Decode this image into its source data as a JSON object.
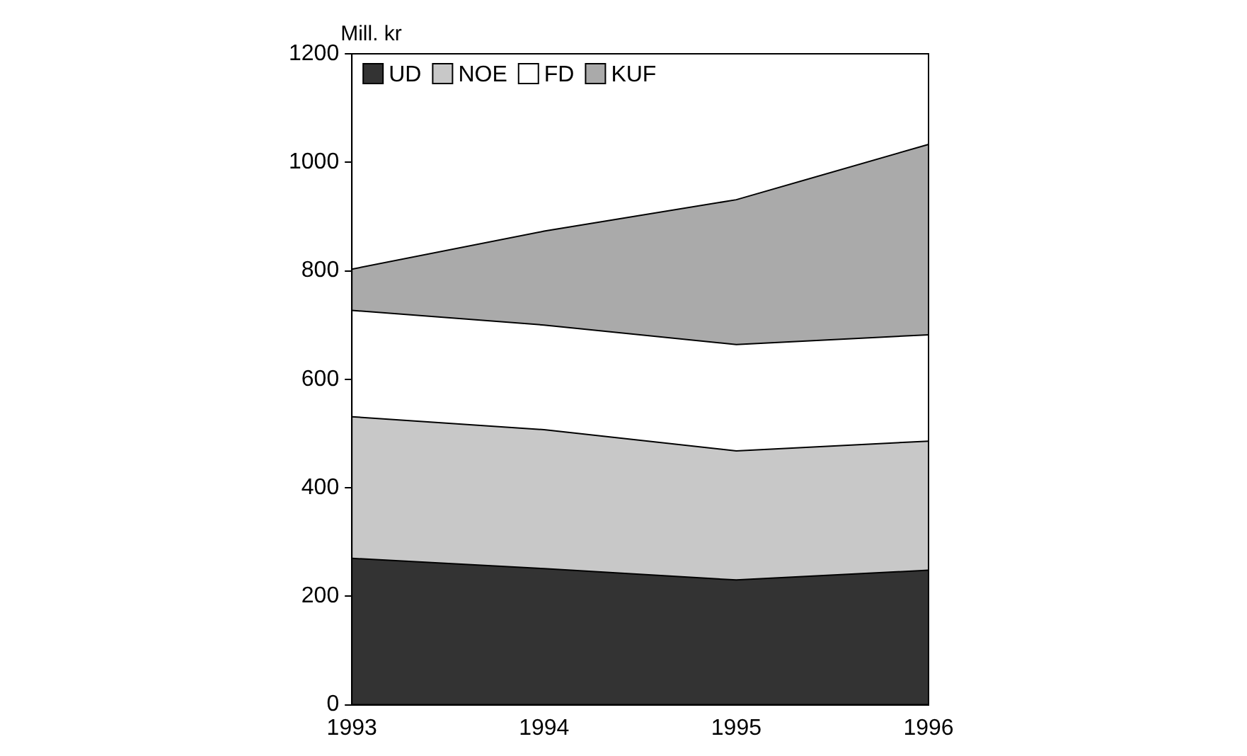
{
  "chart_data": {
    "type": "area",
    "stacked": true,
    "ylabel": "Mill. kr",
    "categories": [
      "1993",
      "1994",
      "1995",
      "1996"
    ],
    "ylim": [
      0,
      1200
    ],
    "yticks": [
      0,
      200,
      400,
      600,
      800,
      1000,
      1200
    ],
    "grid": false,
    "legend": "top left",
    "series": [
      {
        "name": "UD",
        "color": "#333333",
        "values": [
          270,
          251,
          230,
          248
        ]
      },
      {
        "name": "NOE",
        "color": "#c8c8c8",
        "values": [
          261,
          256,
          238,
          238
        ]
      },
      {
        "name": "FD",
        "color": "#ffffff",
        "values": [
          196,
          193,
          196,
          196
        ]
      },
      {
        "name": "KUF",
        "color": "#aaaaaa",
        "values": [
          76,
          173,
          267,
          351
        ]
      }
    ]
  }
}
